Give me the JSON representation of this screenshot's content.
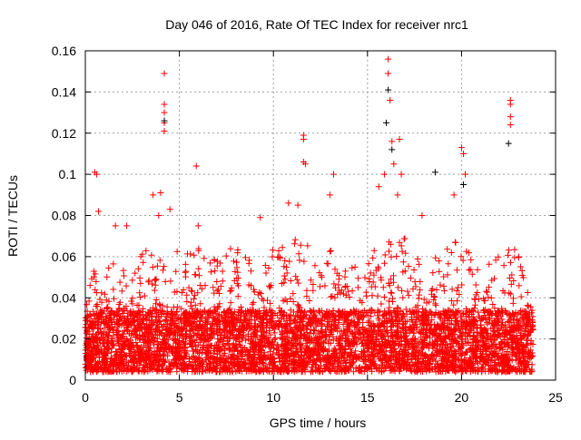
{
  "chart_data": {
    "type": "scatter",
    "title": "Day 046 of 2016, Rate Of TEC Index for receiver nrc1",
    "xlabel": "GPS time / hours",
    "ylabel": "ROTI / TECUs",
    "xlim": [
      0,
      25
    ],
    "ylim": [
      0,
      0.16
    ],
    "xticks": [
      "0",
      "5",
      "10",
      "15",
      "20",
      "25"
    ],
    "xtick_values": [
      0,
      5,
      10,
      15,
      20,
      25
    ],
    "yticks": [
      "0",
      "0.02",
      "0.04",
      "0.06",
      "0.08",
      "0.1",
      "0.12",
      "0.14",
      "0.16"
    ],
    "ytick_values": [
      0,
      0.02,
      0.04,
      0.06,
      0.08,
      0.1,
      0.12,
      0.14,
      0.16
    ],
    "grid": true,
    "marker": "plus",
    "colors": {
      "main": "#ff0000",
      "secondary": "#000000",
      "grid": "#a0a0a0"
    },
    "data_range_hours": [
      0,
      23.8
    ],
    "dense_core_max": 0.03,
    "hourly_envelope": {
      "hours": [
        0,
        1,
        2,
        3,
        4,
        5,
        6,
        7,
        8,
        9,
        10,
        11,
        12,
        13,
        14,
        15,
        16,
        17,
        18,
        19,
        20,
        21,
        22,
        23,
        23.8
      ],
      "max_roti": [
        0.045,
        0.055,
        0.05,
        0.06,
        0.06,
        0.06,
        0.06,
        0.055,
        0.065,
        0.05,
        0.06,
        0.07,
        0.06,
        0.06,
        0.05,
        0.055,
        0.07,
        0.065,
        0.05,
        0.06,
        0.065,
        0.05,
        0.06,
        0.06,
        0.03
      ]
    },
    "spikes": [
      [
        4.2,
        0.149
      ],
      [
        4.2,
        0.134
      ],
      [
        4.2,
        0.13
      ],
      [
        4.2,
        0.125
      ],
      [
        4.2,
        0.121
      ],
      [
        5.9,
        0.104
      ],
      [
        0.5,
        0.101
      ],
      [
        0.6,
        0.1
      ],
      [
        11.6,
        0.119
      ],
      [
        11.6,
        0.117
      ],
      [
        11.6,
        0.106
      ],
      [
        13.2,
        0.1
      ],
      [
        16.1,
        0.156
      ],
      [
        16.1,
        0.149
      ],
      [
        16.2,
        0.136
      ],
      [
        16.3,
        0.116
      ],
      [
        16.7,
        0.117
      ],
      [
        20.0,
        0.113
      ],
      [
        20.1,
        0.11
      ],
      [
        22.6,
        0.136
      ],
      [
        22.6,
        0.134
      ],
      [
        22.6,
        0.128
      ],
      [
        22.6,
        0.124
      ],
      [
        3.6,
        0.09
      ],
      [
        4.0,
        0.091
      ],
      [
        2.2,
        0.075
      ],
      [
        1.6,
        0.075
      ],
      [
        6.0,
        0.075
      ],
      [
        9.3,
        0.079
      ],
      [
        10.8,
        0.086
      ],
      [
        11.3,
        0.085
      ],
      [
        13.0,
        0.09
      ],
      [
        15.6,
        0.094
      ],
      [
        15.9,
        0.1
      ],
      [
        16.8,
        0.1
      ],
      [
        19.6,
        0.09
      ],
      [
        20.2,
        0.1
      ],
      [
        17.9,
        0.08
      ],
      [
        0.7,
        0.082
      ],
      [
        3.9,
        0.08
      ],
      [
        4.5,
        0.083
      ],
      [
        11.7,
        0.105
      ],
      [
        16.4,
        0.105
      ],
      [
        16.6,
        0.09
      ]
    ],
    "secondary_points": [
      [
        16.1,
        0.141
      ],
      [
        16.0,
        0.125
      ],
      [
        22.5,
        0.115
      ],
      [
        18.6,
        0.101
      ],
      [
        4.2,
        0.126
      ],
      [
        16.3,
        0.112
      ],
      [
        20.1,
        0.095
      ]
    ]
  }
}
